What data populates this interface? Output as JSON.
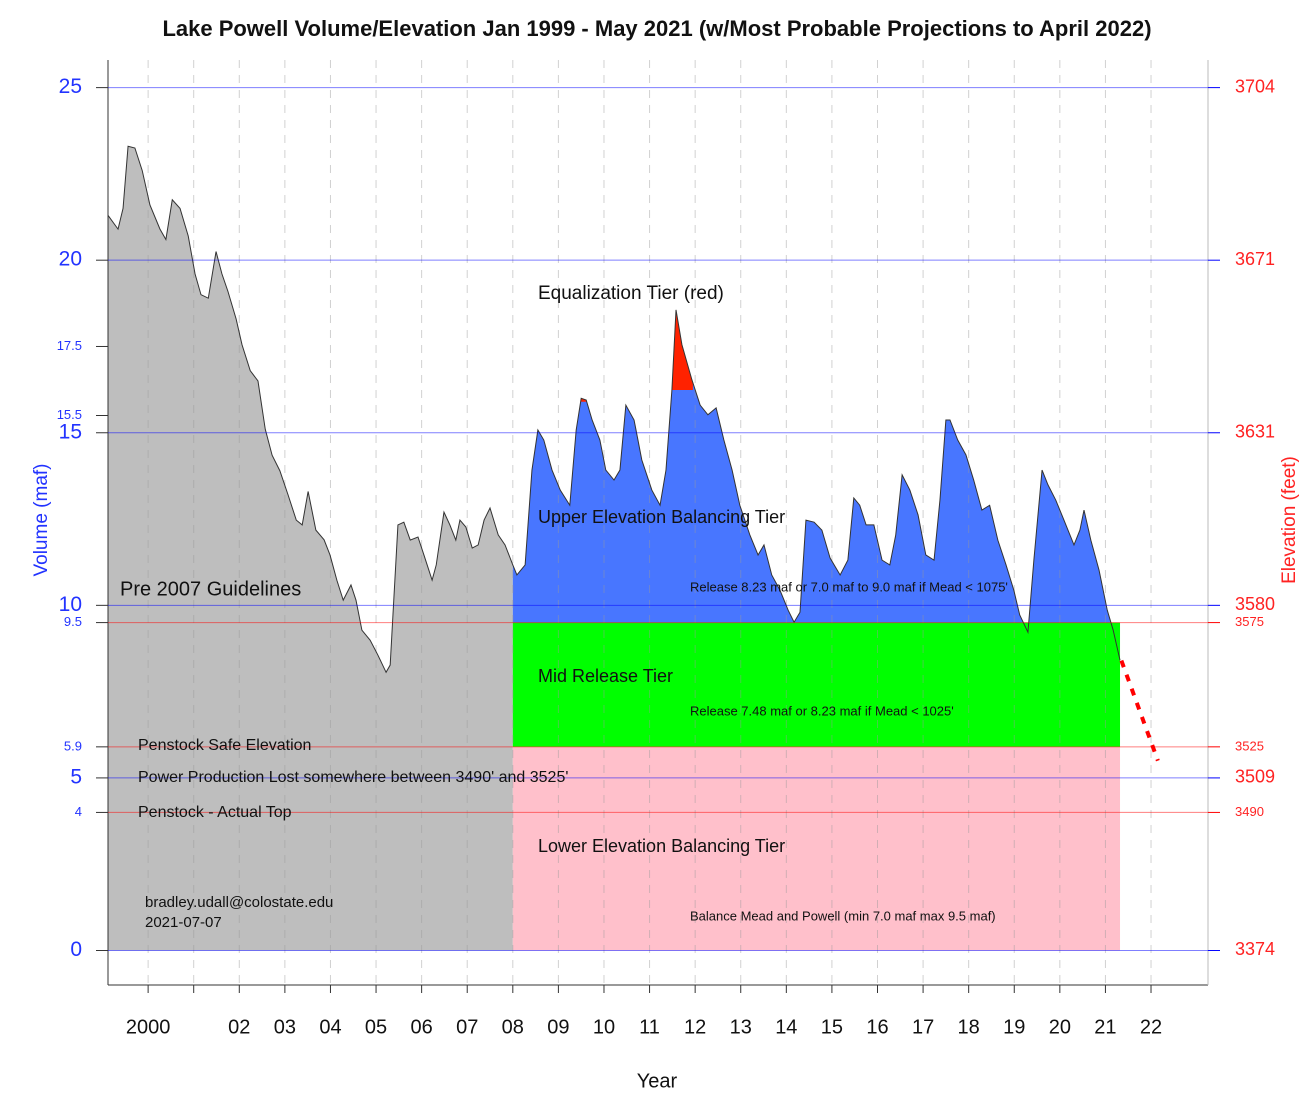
{
  "chart_data": {
    "type": "area",
    "title": "Lake Powell Volume/Elevation Jan 1999 - May 2021 (w/Most Probable Projections to April 2022)",
    "x_label": "Year",
    "y_label": "Volume (maf)",
    "y2_label": "Elevation (feet)",
    "xlim": [
      1999.12,
      2023.25
    ],
    "ylim": [
      -1.0,
      25.8
    ],
    "xticks": [
      {
        "value": 2000,
        "label": "2000"
      },
      {
        "value": 2001,
        "label": null
      },
      {
        "value": 2002,
        "label": "02"
      },
      {
        "value": 2003,
        "label": "03"
      },
      {
        "value": 2004,
        "label": "04"
      },
      {
        "value": 2005,
        "label": "05"
      },
      {
        "value": 2006,
        "label": "06"
      },
      {
        "value": 2007,
        "label": "07"
      },
      {
        "value": 2008,
        "label": "08"
      },
      {
        "value": 2009,
        "label": "09"
      },
      {
        "value": 2010,
        "label": "10"
      },
      {
        "value": 2011,
        "label": "11"
      },
      {
        "value": 2012,
        "label": "12"
      },
      {
        "value": 2013,
        "label": "13"
      },
      {
        "value": 2014,
        "label": "14"
      },
      {
        "value": 2015,
        "label": "15"
      },
      {
        "value": 2016,
        "label": "16"
      },
      {
        "value": 2017,
        "label": "17"
      },
      {
        "value": 2018,
        "label": "18"
      },
      {
        "value": 2019,
        "label": "19"
      },
      {
        "value": 2020,
        "label": "20"
      },
      {
        "value": 2021,
        "label": "21"
      },
      {
        "value": 2022,
        "label": "22"
      }
    ],
    "hlines": [
      {
        "y": 25,
        "elevation": 3704,
        "color": "#0000ff",
        "major": true
      },
      {
        "y": 20,
        "elevation": 3671,
        "color": "#0000ff",
        "major": true
      },
      {
        "y": 17.5,
        "major": false
      },
      {
        "y": 15.5,
        "major": false
      },
      {
        "y": 15,
        "elevation": 3631,
        "color": "#0000ff",
        "major": true
      },
      {
        "y": 10,
        "elevation": 3580,
        "color": "#0000ff",
        "major": true
      },
      {
        "y": 9.5,
        "elevation": 3575,
        "color": "#ff0000",
        "major": false
      },
      {
        "y": 5.9,
        "elevation": 3525,
        "color": "#ff0000",
        "major": false
      },
      {
        "y": 5,
        "elevation": 3509,
        "color": "#0000ff",
        "major": true
      },
      {
        "y": 4,
        "elevation": 3490,
        "color": "#ff0000",
        "major": false
      },
      {
        "y": 0,
        "elevation": 3374,
        "color": "#0000ff",
        "major": true
      }
    ],
    "x": [
      1999.12,
      1999.34,
      1999.45,
      1999.56,
      1999.71,
      1999.87,
      2000.04,
      2000.26,
      2000.39,
      2000.53,
      2000.7,
      2000.88,
      2001.03,
      2001.16,
      2001.32,
      2001.49,
      2001.62,
      2001.75,
      2001.93,
      2002.06,
      2002.24,
      2002.41,
      2002.57,
      2002.72,
      2002.89,
      2003.07,
      2003.25,
      2003.38,
      2003.51,
      2003.68,
      2003.86,
      2003.99,
      2004.14,
      2004.28,
      2004.45,
      2004.56,
      2004.69,
      2004.87,
      2005.04,
      2005.22,
      2005.31,
      2005.48,
      2005.61,
      2005.75,
      2005.92,
      2006.05,
      2006.23,
      2006.32,
      2006.49,
      2006.62,
      2006.75,
      2006.84,
      2006.97,
      2007.11,
      2007.24,
      2007.37,
      2007.5,
      2007.68,
      2007.83,
      2008.0,
      2008.09,
      2008.27,
      2008.42,
      2008.55,
      2008.68,
      2008.86,
      2009.04,
      2009.25,
      2009.39,
      2009.5,
      2009.61,
      2009.74,
      2009.91,
      2010.04,
      2010.22,
      2010.35,
      2010.48,
      2010.66,
      2010.83,
      2011.05,
      2011.23,
      2011.36,
      2011.49,
      2011.58,
      2011.71,
      2011.93,
      2012.11,
      2012.28,
      2012.46,
      2012.63,
      2012.81,
      2012.98,
      2013.2,
      2013.38,
      2013.51,
      2013.68,
      2013.86,
      2014.04,
      2014.17,
      2014.3,
      2014.43,
      2014.61,
      2014.78,
      2014.96,
      2015.18,
      2015.35,
      2015.48,
      2015.61,
      2015.75,
      2015.92,
      2016.1,
      2016.27,
      2016.4,
      2016.54,
      2016.71,
      2016.89,
      2017.06,
      2017.24,
      2017.37,
      2017.5,
      2017.59,
      2017.76,
      2017.94,
      2018.11,
      2018.29,
      2018.46,
      2018.64,
      2018.82,
      2018.99,
      2019.12,
      2019.3,
      2019.43,
      2019.61,
      2019.74,
      2019.91,
      2020.09,
      2020.31,
      2020.44,
      2020.53,
      2020.68,
      2020.86,
      2021.04,
      2021.17,
      2021.32
    ],
    "values": [
      21.3,
      20.9,
      21.5,
      23.3,
      23.25,
      22.6,
      21.6,
      20.9,
      20.6,
      21.75,
      21.5,
      20.7,
      19.6,
      19.0,
      18.9,
      20.25,
      19.6,
      19.1,
      18.3,
      17.55,
      16.8,
      16.5,
      15.1,
      14.35,
      13.9,
      13.2,
      12.47,
      12.33,
      13.3,
      12.18,
      11.9,
      11.46,
      10.73,
      10.15,
      10.59,
      10.15,
      9.28,
      8.99,
      8.56,
      8.06,
      8.27,
      12.33,
      12.41,
      11.89,
      11.98,
      11.46,
      10.73,
      11.17,
      12.7,
      12.33,
      11.89,
      12.47,
      12.27,
      11.66,
      11.75,
      12.47,
      12.82,
      12.04,
      11.75,
      11.17,
      10.88,
      11.17,
      13.92,
      15.08,
      14.79,
      13.92,
      13.34,
      12.9,
      15.08,
      16.0,
      15.95,
      15.37,
      14.79,
      13.92,
      13.63,
      13.92,
      15.8,
      15.37,
      14.21,
      13.34,
      12.9,
      13.92,
      16.24,
      18.56,
      17.55,
      16.53,
      15.8,
      15.52,
      15.72,
      14.79,
      13.92,
      12.9,
      12.04,
      11.46,
      11.75,
      10.88,
      10.44,
      9.86,
      9.51,
      9.8,
      12.47,
      12.41,
      12.18,
      11.37,
      10.88,
      11.31,
      13.11,
      12.9,
      12.33,
      12.33,
      11.31,
      11.17,
      12.04,
      13.78,
      13.34,
      12.62,
      11.46,
      11.31,
      13.05,
      15.37,
      15.37,
      14.79,
      14.36,
      13.63,
      12.76,
      12.9,
      11.89,
      11.17,
      10.44,
      9.72,
      9.22,
      11.31,
      13.92,
      13.49,
      13.05,
      12.47,
      11.75,
      12.18,
      12.76,
      11.89,
      11.02,
      9.86,
      9.28,
      8.41
    ],
    "color": "#333333",
    "pre2007": {
      "label": "Pre 2007 Guidelines",
      "color": "#bebebe",
      "x_end": 2008
    },
    "tier_xlim": [
      2008,
      2021.32
    ],
    "tiers": [
      {
        "name": "Lower Elevation Balancing Tier",
        "note": "Balance Mead and Powell (min 7.0 maf max 9.5 maf)",
        "ymin": 0,
        "ymax": 5.9,
        "color": "#ffc0cb"
      },
      {
        "name": "Mid Release Tier",
        "note": "Release 7.48 maf or 8.23 maf if Mead < 1025'",
        "ymin": 5.9,
        "ymax": 9.5,
        "color": "#00ff00"
      },
      {
        "name": "Upper Elevation Balancing Tier",
        "note": "Release 8.23 maf or 7.0 maf to 9.0 maf if Mead < 1075'",
        "ymin": 9.5,
        "color": "#4876ff"
      }
    ],
    "equalization": {
      "name": "Equalization Tier (red)",
      "color": "#ff2200",
      "regions": [
        {
          "xlim": [
            2009.4,
            2009.65
          ],
          "threshold": 15.9
        },
        {
          "xlim": [
            2011.45,
            2011.95
          ],
          "threshold": 16.24
        }
      ]
    },
    "projection": {
      "x": [
        2021.35,
        2022.15
      ],
      "values": [
        8.4,
        5.5
      ],
      "color": "#ff0000"
    },
    "annotations": [
      "Penstock Safe Elevation",
      "Power Production Lost somewhere between 3490' and 3525'",
      "Penstock - Actual Top",
      "bradley.udall@colostate.edu",
      "2021-07-07"
    ]
  }
}
